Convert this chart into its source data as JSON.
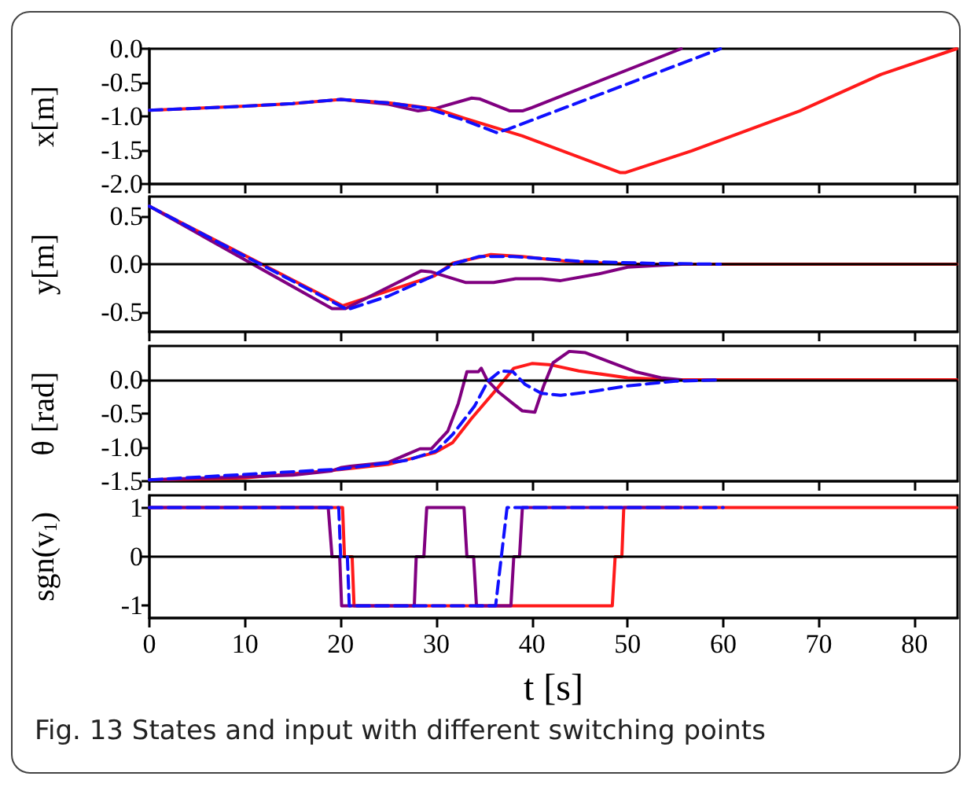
{
  "chart_data": [
    {
      "type": "line",
      "ylabel": "x[m]",
      "xlim": [
        0,
        84.5
      ],
      "xticks": [
        0,
        10,
        20,
        30,
        40,
        50,
        60,
        70,
        80
      ],
      "ylim": [
        -2,
        0
      ],
      "yticks": [
        {
          "value": -2,
          "label": "-2.0"
        },
        {
          "value": -1.5,
          "label": "-1.5"
        },
        {
          "value": -1,
          "label": "-1.0"
        },
        {
          "value": -0.5,
          "label": "-0.5"
        },
        {
          "value": 0,
          "label": "0.0"
        }
      ],
      "tick_labels": "y",
      "marker": "none",
      "series": [
        {
          "color": "#800080",
          "line_style": "solid",
          "x": [
            20,
            25,
            28.1,
            30,
            33.7,
            34.5,
            37.7,
            39,
            40,
            55.6
          ],
          "values": [
            -0.75,
            -0.82,
            -0.92,
            -0.88,
            -0.73,
            -0.74,
            -0.92,
            -0.92,
            -0.87,
            0
          ]
        },
        {
          "color": "#ff1a1a",
          "line_style": "solid",
          "x": [
            0,
            5,
            10,
            15,
            20,
            25,
            30,
            33,
            39,
            49.2,
            49.8,
            56.7,
            68,
            76.5,
            84.4
          ],
          "values": [
            -0.91,
            -0.88,
            -0.85,
            -0.81,
            -0.75,
            -0.8,
            -0.89,
            -1.03,
            -1.29,
            -1.83,
            -1.83,
            -1.51,
            -0.92,
            -0.38,
            0
          ]
        },
        {
          "color": "#1010ff",
          "line_style": "dashed",
          "x": [
            0,
            5,
            10,
            15,
            20,
            25,
            29,
            33,
            36.3,
            37.5,
            59.7
          ],
          "values": [
            -0.91,
            -0.88,
            -0.85,
            -0.81,
            -0.75,
            -0.8,
            -0.88,
            -1.06,
            -1.24,
            -1.19,
            0
          ]
        }
      ]
    },
    {
      "type": "line",
      "ylabel": "y[m]",
      "xlim": [
        0,
        84.5
      ],
      "xticks": [
        0,
        10,
        20,
        30,
        40,
        50,
        60,
        70,
        80
      ],
      "ylim": [
        -0.7,
        0.7
      ],
      "yticks": [
        {
          "value": -0.5,
          "label": "-0.5"
        },
        {
          "value": 0,
          "label": "0.0"
        },
        {
          "value": 0.5,
          "label": "0.5"
        }
      ],
      "tick_labels": "y",
      "marker": "none",
      "ref_lines": [
        {
          "axis": "y",
          "value": 0
        }
      ],
      "series": [
        {
          "color": "#ff1a1a",
          "line_style": "solid",
          "x": [
            0,
            20.2,
            29.8,
            31.7,
            35.7,
            39,
            43.6,
            50.2,
            84.4
          ],
          "values": [
            0.6,
            -0.43,
            -0.12,
            0.01,
            0.1,
            0.08,
            0.03,
            0,
            0
          ]
        },
        {
          "color": "#800080",
          "line_style": "solid",
          "x": [
            0,
            19.1,
            20.5,
            28.4,
            29.5,
            33.1,
            36,
            38.3,
            41,
            43,
            47,
            50,
            55.6
          ],
          "values": [
            0.6,
            -0.46,
            -0.46,
            -0.07,
            -0.08,
            -0.19,
            -0.19,
            -0.15,
            -0.15,
            -0.17,
            -0.1,
            -0.03,
            0
          ]
        },
        {
          "color": "#1010ff",
          "line_style": "dashed",
          "x": [
            0,
            20.7,
            25,
            29.5,
            32,
            34.5,
            38,
            45,
            52,
            59.7
          ],
          "values": [
            0.6,
            -0.47,
            -0.33,
            -0.13,
            0.01,
            0.08,
            0.08,
            0.03,
            0.01,
            0
          ]
        }
      ]
    },
    {
      "type": "line",
      "ylabel": "θ [rad]",
      "xlim": [
        0,
        84.5
      ],
      "xticks": [
        0,
        10,
        20,
        30,
        40,
        50,
        60,
        70,
        80
      ],
      "ylim": [
        -1.5,
        0.5
      ],
      "yticks": [
        {
          "value": -1.5,
          "label": "-1.5"
        },
        {
          "value": -1,
          "label": "-1.0"
        },
        {
          "value": -0.5,
          "label": "-0.5"
        },
        {
          "value": 0,
          "label": "0.0"
        }
      ],
      "tick_labels": "y",
      "marker": "none",
      "ref_lines": [
        {
          "axis": "y",
          "value": 0
        }
      ],
      "series": [
        {
          "color": "#ff1a1a",
          "line_style": "solid",
          "x": [
            0,
            10,
            19.9,
            25,
            29.8,
            31.7,
            33.7,
            36,
            38.1,
            40,
            42,
            44.9,
            50,
            55,
            84.4
          ],
          "values": [
            -1.48,
            -1.45,
            -1.33,
            -1.25,
            -1.08,
            -0.93,
            -0.57,
            -0.19,
            0.17,
            0.24,
            0.22,
            0.13,
            0.03,
            0,
            0
          ]
        },
        {
          "color": "#800080",
          "line_style": "solid",
          "x": [
            0,
            15,
            19,
            20,
            21,
            25,
            28.3,
            29.5,
            31.2,
            32.3,
            33.2,
            34.4,
            34.7,
            35.3,
            36.5,
            38,
            39,
            40.3,
            41.2,
            42.2,
            43.9,
            45.6,
            48.2,
            50.8,
            53.5,
            55.6
          ],
          "values": [
            -1.48,
            -1.41,
            -1.35,
            -1.3,
            -1.28,
            -1.22,
            -1.02,
            -1.02,
            -0.76,
            -0.35,
            0.12,
            0.12,
            0.17,
            0,
            -0.18,
            -0.35,
            -0.46,
            -0.48,
            -0.1,
            0.25,
            0.42,
            0.4,
            0.26,
            0.12,
            0.03,
            0
          ]
        },
        {
          "color": "#1010ff",
          "line_style": "dashed",
          "x": [
            0,
            20,
            27,
            30,
            31.7,
            34,
            35.4,
            36.7,
            38,
            39.3,
            41,
            43,
            46,
            50,
            55,
            59.7
          ],
          "values": [
            -1.48,
            -1.32,
            -1.19,
            -1.05,
            -0.81,
            -0.39,
            -0.02,
            0.13,
            0.12,
            -0.07,
            -0.2,
            -0.23,
            -0.18,
            -0.09,
            -0.02,
            0
          ]
        }
      ]
    },
    {
      "type": "line",
      "ylabel": "sgn(v$_{1}$)",
      "xlabel": "t [s]",
      "xlim": [
        0,
        84.5
      ],
      "xticks": [
        0,
        10,
        20,
        30,
        40,
        50,
        60,
        70,
        80
      ],
      "ylim": [
        -1.25,
        1.25
      ],
      "yticks": [
        -1,
        0,
        1
      ],
      "marker": "none",
      "ref_lines": [
        {
          "axis": "y",
          "value": 0
        }
      ],
      "annotations": [
        "Fig. 13  States and input with different switching points"
      ],
      "series": [
        {
          "color": "#ff1a1a",
          "line_style": "solid",
          "x": [
            0,
            20.2,
            20.4,
            21.2,
            21.4,
            48.4,
            48.7,
            49.4,
            49.6,
            84.4
          ],
          "values": [
            1,
            1,
            0,
            0,
            -1,
            -1,
            0,
            0,
            1,
            1
          ]
        },
        {
          "color": "#800080",
          "line_style": "solid",
          "x": [
            0,
            18.7,
            19.1,
            19.9,
            20.1,
            27.7,
            27.9,
            28.7,
            29,
            32.9,
            33.2,
            33.9,
            34.2,
            37.8,
            38.1,
            38.7,
            39,
            55.6
          ],
          "values": [
            1,
            1,
            0,
            0,
            -1,
            -1,
            0,
            0,
            1,
            1,
            0,
            0,
            -1,
            -1,
            0,
            0,
            1,
            1
          ]
        },
        {
          "color": "#1010ff",
          "line_style": "dashed",
          "x": [
            0,
            19.8,
            20,
            20.7,
            20.9,
            36.2,
            36.8,
            37.4,
            60
          ],
          "values": [
            1,
            1,
            0,
            0,
            -1,
            -1,
            0,
            1,
            1
          ]
        }
      ]
    }
  ]
}
